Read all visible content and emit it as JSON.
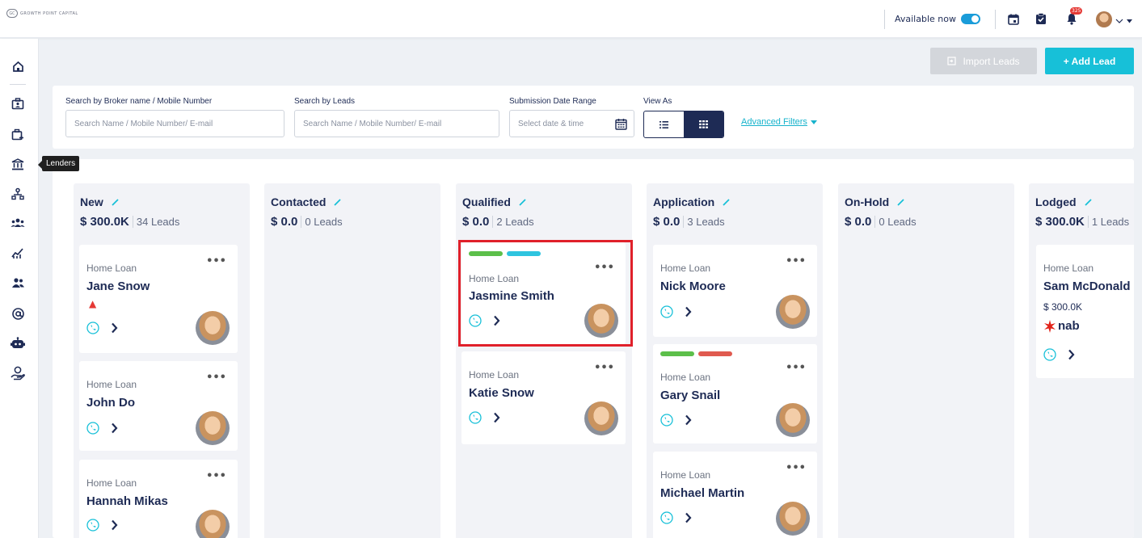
{
  "app": {
    "logo_mark": "GC",
    "logo_text": "GROWTH POINT CAPITAL"
  },
  "topbar": {
    "availability_label": "Available now",
    "notification_count": "325"
  },
  "sidebar": {
    "tooltip": "Lenders",
    "items": [
      "home-icon",
      "briefcase-user-icon",
      "briefcase-add-icon",
      "bank-icon",
      "org-chart-icon",
      "team-icon",
      "chart-icon",
      "users-icon",
      "at-icon",
      "robot-icon",
      "recycle-icon"
    ]
  },
  "actions": {
    "import_label": "Import Leads",
    "add_label": "+ Add Lead"
  },
  "filters": {
    "broker_label": "Search by Broker name / Mobile Number",
    "broker_placeholder": "Search Name / Mobile Number/ E-mail",
    "leads_label": "Search by Leads",
    "leads_placeholder": "Search Name / Mobile Number/ E-mail",
    "date_label": "Submission Date Range",
    "date_placeholder": "Select date & time",
    "view_label": "View As",
    "advanced_label": "Advanced Filters"
  },
  "columns": [
    {
      "title": "New",
      "total": "$ 300.0K",
      "count": "34 Leads"
    },
    {
      "title": "Contacted",
      "total": "$ 0.0",
      "count": "0 Leads"
    },
    {
      "title": "Qualified",
      "total": "$ 0.0",
      "count": "2 Leads"
    },
    {
      "title": "Application",
      "total": "$ 0.0",
      "count": "3 Leads"
    },
    {
      "title": "On-Hold",
      "total": "$ 0.0",
      "count": "0 Leads"
    },
    {
      "title": "Lodged",
      "total": "$ 300.0K",
      "count": "1 Leads"
    }
  ],
  "cards": {
    "new": [
      {
        "type": "Home Loan",
        "name": "Jane Snow"
      },
      {
        "type": "Home Loan",
        "name": "John Do"
      },
      {
        "type": "Home Loan",
        "name": "Hannah Mikas"
      }
    ],
    "qualified": [
      {
        "type": "Home Loan",
        "name": "Jasmine Smith",
        "tags": [
          "#5cbf4a",
          "#2ec4df"
        ]
      },
      {
        "type": "Home Loan",
        "name": "Katie Snow"
      }
    ],
    "application": [
      {
        "type": "Home Loan",
        "name": "Nick Moore"
      },
      {
        "type": "Home Loan",
        "name": "Gary Snail",
        "tags": [
          "#5cbf4a",
          "#e05a4f"
        ]
      },
      {
        "type": "Home Loan",
        "name": "Michael Martin"
      }
    ],
    "lodged": [
      {
        "type": "Home Loan",
        "name": "Sam McDonald",
        "amount": "$ 300.0K",
        "lender": "nab"
      }
    ]
  },
  "menu_glyph": "•••",
  "colors": {
    "accent": "#17c0d8",
    "navy": "#1e2b55",
    "highlight": "#e0202a"
  }
}
